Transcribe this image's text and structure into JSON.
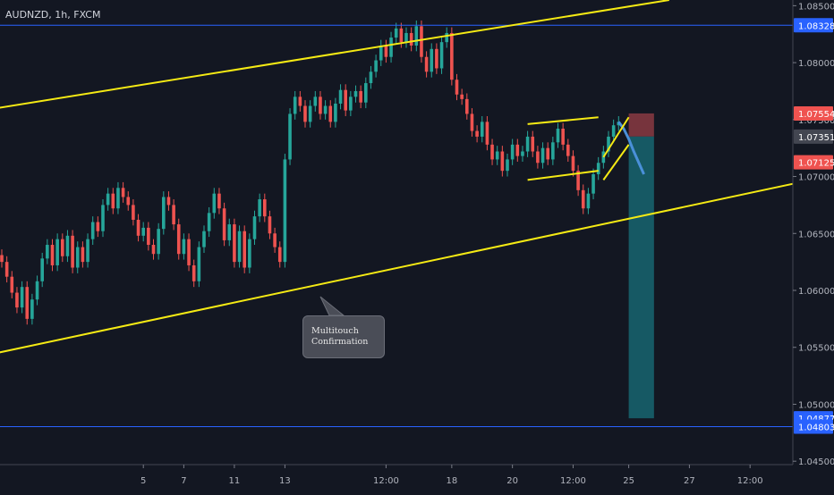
{
  "header": {
    "symbol": "AUDNZD, 1h, FXCM"
  },
  "callout": {
    "line1": "Multitouch",
    "line2": "Confirmation"
  },
  "colors": {
    "background": "#131722",
    "bull": "#26a69a",
    "bear": "#ef5350",
    "channel": "#f5ea14",
    "level_line": "#2962ff",
    "target_zone": "#17606b",
    "stop_zone": "#8a3a42",
    "projection": "#4a90d9"
  },
  "chart_data": {
    "type": "line",
    "title": "",
    "xlabel": "",
    "ylabel": "",
    "ylim": [
      1.0447,
      1.0855
    ],
    "x_ticks": [
      {
        "label": "5",
        "bar": 28
      },
      {
        "label": "7",
        "bar": 36
      },
      {
        "label": "11",
        "bar": 46
      },
      {
        "label": "13",
        "bar": 56
      },
      {
        "label": "12:00",
        "bar": 76
      },
      {
        "label": "18",
        "bar": 89
      },
      {
        "label": "20",
        "bar": 101
      },
      {
        "label": "12:00",
        "bar": 113
      },
      {
        "label": "25",
        "bar": 124
      },
      {
        "label": "27",
        "bar": 136
      },
      {
        "label": "12:00",
        "bar": 148
      }
    ],
    "y_ticks": [
      "1.08500",
      "1.08000",
      "1.07500",
      "1.07000",
      "1.06500",
      "1.06000",
      "1.05500",
      "1.05000",
      "1.04500"
    ],
    "price_labels": [
      {
        "text": "1.08328",
        "value": 1.08328,
        "color": "#2962ff"
      },
      {
        "text": "1.07554",
        "value": 1.07554,
        "color": "#ef5350"
      },
      {
        "text": "1.07351",
        "value": 1.07351,
        "color": "#434651"
      },
      {
        "text": "1.07125",
        "value": 1.07125,
        "color": "#ef5350"
      },
      {
        "text": "1.04877",
        "value": 1.04877,
        "color": "#2962ff"
      },
      {
        "text": "1.04803",
        "value": 1.04803,
        "color": "#2962ff"
      }
    ],
    "horizontal_levels": [
      1.08328,
      1.04803
    ],
    "close_series": [
      1.0625,
      1.0612,
      1.0598,
      1.0585,
      1.0603,
      1.0575,
      1.0592,
      1.0608,
      1.0628,
      1.064,
      1.0622,
      1.0645,
      1.063,
      1.0648,
      1.062,
      1.0638,
      1.0625,
      1.0645,
      1.066,
      1.0652,
      1.0675,
      1.0685,
      1.0672,
      1.069,
      1.0682,
      1.0675,
      1.0662,
      1.0648,
      1.0655,
      1.064,
      1.0632,
      1.0654,
      1.0682,
      1.0675,
      1.0658,
      1.0632,
      1.0645,
      1.0622,
      1.0608,
      1.0638,
      1.0652,
      1.0668,
      1.0685,
      1.0672,
      1.0644,
      1.0658,
      1.0625,
      1.0652,
      1.062,
      1.0645,
      1.0665,
      1.068,
      1.0665,
      1.065,
      1.0638,
      1.0625,
      1.0715,
      1.0755,
      1.077,
      1.0762,
      1.0748,
      1.0762,
      1.077,
      1.0755,
      1.0762,
      1.0748,
      1.0764,
      1.0776,
      1.0758,
      1.077,
      1.0775,
      1.0765,
      1.0782,
      1.0792,
      1.0802,
      1.0815,
      1.0805,
      1.0822,
      1.083,
      1.0818,
      1.0826,
      1.0815,
      1.0832,
      1.0805,
      1.0792,
      1.0812,
      1.0795,
      1.0818,
      1.0826,
      1.0785,
      1.0772,
      1.0768,
      1.0755,
      1.074,
      1.0735,
      1.0748,
      1.0728,
      1.0715,
      1.0722,
      1.0705,
      1.0715,
      1.0728,
      1.0718,
      1.0722,
      1.0735,
      1.0722,
      1.0712,
      1.0725,
      1.0715,
      1.073,
      1.0742,
      1.0728,
      1.0718,
      1.0705,
      1.0688,
      1.0672,
      1.0685,
      1.0702,
      1.0712,
      1.0722,
      1.0735,
      1.0745,
      1.0748
    ],
    "projection": [
      1.0748,
      1.0742,
      1.0733,
      1.0722,
      1.0712,
      1.0702
    ],
    "trend_lines": [
      {
        "name": "upper channel",
        "from": [
          -1,
          1.076
        ],
        "to": [
          132,
          1.0855
        ]
      },
      {
        "name": "lower channel",
        "from": [
          -1,
          1.0545
        ],
        "to": [
          176,
          1.0712
        ]
      },
      {
        "name": "flag top",
        "from": [
          104,
          1.0746
        ],
        "to": [
          118,
          1.0752
        ]
      },
      {
        "name": "flag bottom",
        "from": [
          104,
          1.0697
        ],
        "to": [
          118,
          1.0705
        ]
      },
      {
        "name": "wedge top",
        "from": [
          119,
          1.0717
        ],
        "to": [
          124,
          1.0752
        ]
      },
      {
        "name": "wedge bottom",
        "from": [
          119,
          1.0697
        ],
        "to": [
          124,
          1.0728
        ]
      }
    ],
    "position_box": {
      "from_bar": 124,
      "to_bar": 129,
      "entry": 1.07351,
      "stop": 1.07554,
      "target": 1.04877
    }
  }
}
